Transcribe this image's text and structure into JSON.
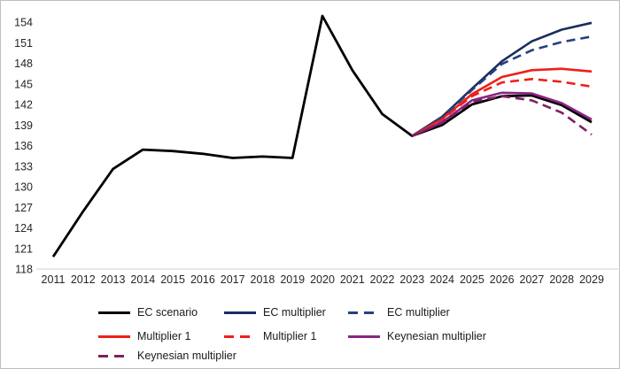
{
  "figure": {
    "background": "#ffffff",
    "border_color": "#bfbfbf"
  },
  "axes": {
    "axis_line_color": "#d9d9d9",
    "tick_color": "#262626"
  },
  "legend": {
    "rows": [
      [
        {
          "label": "EC scenario",
          "color": "#000000",
          "style": "solid"
        },
        {
          "label": "EC multiplier",
          "color": "#1b2d5e",
          "style": "solid"
        },
        {
          "label": "EC multiplier",
          "color": "#26407f",
          "style": "dashed"
        }
      ],
      [
        {
          "label": "Multiplier 1",
          "color": "#ee2019",
          "style": "solid"
        },
        {
          "label": "Multiplier 1",
          "color": "#ee2019",
          "style": "dashed"
        },
        {
          "label": "Keynesian multiplier",
          "color": "#8b2585",
          "style": "solid"
        }
      ],
      [
        {
          "label": "Keynesian multiplier",
          "color": "#7c2161",
          "style": "dashed"
        }
      ]
    ]
  },
  "chart_data": {
    "type": "line",
    "title": "",
    "xlabel": "",
    "ylabel": "",
    "x": [
      2011,
      2012,
      2013,
      2014,
      2015,
      2016,
      2017,
      2018,
      2019,
      2020,
      2021,
      2022,
      2023,
      2024,
      2025,
      2026,
      2027,
      2028,
      2029
    ],
    "ylim": [
      118,
      154
    ],
    "ytick_step": 3,
    "grid": false,
    "legend_position": "bottom",
    "series": [
      {
        "name": "EC scenario",
        "color": "#000000",
        "style": "solid",
        "width": 2.8,
        "x": [
          2011,
          2012,
          2013,
          2014,
          2015,
          2016,
          2017,
          2018,
          2019,
          2020,
          2021,
          2022,
          2023,
          2024,
          2025,
          2026,
          2027,
          2028,
          2029
        ],
        "values": [
          119.8,
          126.4,
          132.6,
          135.4,
          135.2,
          134.8,
          134.2,
          134.4,
          134.2,
          154.9,
          147.0,
          140.6,
          137.4,
          139.0,
          142.0,
          143.2,
          143.3,
          141.9,
          139.4
        ]
      },
      {
        "name": "EC multiplier",
        "color": "#1b2d5e",
        "style": "solid",
        "width": 2.6,
        "x": [
          2023,
          2024,
          2025,
          2026,
          2027,
          2028,
          2029
        ],
        "values": [
          137.4,
          140.2,
          144.3,
          148.3,
          151.2,
          152.9,
          153.9
        ]
      },
      {
        "name": "Multiplier 1",
        "color": "#ee2019",
        "style": "solid",
        "width": 2.6,
        "x": [
          2023,
          2024,
          2025,
          2026,
          2027,
          2028,
          2029
        ],
        "values": [
          137.4,
          139.9,
          143.5,
          146.0,
          147.0,
          147.2,
          146.8
        ]
      },
      {
        "name": "Keynesian multiplier",
        "color": "#8b2585",
        "style": "solid",
        "width": 2.6,
        "x": [
          2023,
          2024,
          2025,
          2026,
          2027,
          2028,
          2029
        ],
        "values": [
          137.4,
          139.4,
          142.6,
          143.7,
          143.6,
          142.2,
          139.8
        ]
      },
      {
        "name": "EC multiplier",
        "color": "#26407f",
        "style": "dashed",
        "width": 2.6,
        "x": [
          2023,
          2024,
          2025,
          2026,
          2027,
          2028,
          2029
        ],
        "values": [
          137.4,
          140.1,
          144.1,
          147.9,
          149.9,
          151.1,
          151.9
        ]
      },
      {
        "name": "Multiplier 1",
        "color": "#ee2019",
        "style": "dashed",
        "width": 2.6,
        "x": [
          2023,
          2024,
          2025,
          2026,
          2027,
          2028,
          2029
        ],
        "values": [
          137.4,
          139.8,
          143.2,
          145.2,
          145.7,
          145.3,
          144.6
        ]
      },
      {
        "name": "Keynesian multiplier",
        "color": "#7c2161",
        "style": "dashed",
        "width": 2.6,
        "x": [
          2023,
          2024,
          2025,
          2026,
          2027,
          2028,
          2029
        ],
        "values": [
          137.4,
          139.3,
          142.4,
          143.2,
          142.6,
          140.8,
          137.6
        ]
      }
    ]
  }
}
